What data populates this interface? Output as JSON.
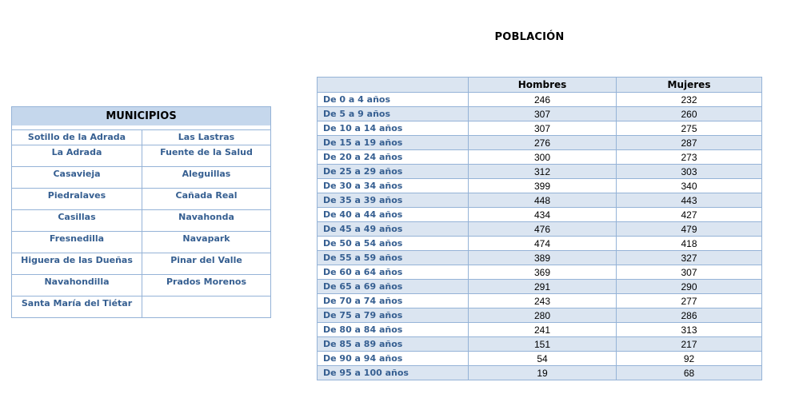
{
  "colors": {
    "table_border": "#95b3d7",
    "band_fill": "#dbe5f1",
    "municipios_header_fill": "#c5d7ec",
    "blue_text": "#365f91",
    "black_text": "#000000"
  },
  "municipios": {
    "title": "MUNICIPIOS",
    "rows": [
      [
        "Sotillo de la Adrada",
        "Las Lastras"
      ],
      [
        "La Adrada",
        "Fuente de la Salud"
      ],
      [
        "Casavieja",
        "Aleguillas"
      ],
      [
        "Piedralaves",
        "Cañada Real"
      ],
      [
        "Casillas",
        "Navahonda"
      ],
      [
        "Fresnedilla",
        "Navapark"
      ],
      [
        "Higuera de las Dueñas",
        "Pinar del Valle"
      ],
      [
        "Navahondilla",
        "Prados Morenos"
      ],
      [
        "Santa María del Tiétar",
        ""
      ]
    ]
  },
  "poblacion": {
    "title": "POBLACIÓN",
    "columns": [
      "",
      "Hombres",
      "Mujeres"
    ],
    "rows": [
      {
        "label": "De 0 a 4 años",
        "hombres": "246",
        "mujeres": "232"
      },
      {
        "label": "De 5 a 9 años",
        "hombres": "307",
        "mujeres": "260"
      },
      {
        "label": "De 10 a 14 años",
        "hombres": "307",
        "mujeres": "275"
      },
      {
        "label": "De 15 a 19 años",
        "hombres": "276",
        "mujeres": "287"
      },
      {
        "label": "De 20 a 24 años",
        "hombres": "300",
        "mujeres": "273"
      },
      {
        "label": "De 25 a 29 años",
        "hombres": "312",
        "mujeres": "303"
      },
      {
        "label": "De 30 a 34 años",
        "hombres": "399",
        "mujeres": "340"
      },
      {
        "label": "De 35 a 39 años",
        "hombres": "448",
        "mujeres": "443"
      },
      {
        "label": "De 40 a 44 años",
        "hombres": "434",
        "mujeres": "427"
      },
      {
        "label": "De 45 a 49 años",
        "hombres": "476",
        "mujeres": "479"
      },
      {
        "label": "De 50 a 54 años",
        "hombres": "474",
        "mujeres": "418"
      },
      {
        "label": "De 55 a 59 años",
        "hombres": "389",
        "mujeres": "327"
      },
      {
        "label": "De 60 a 64 años",
        "hombres": "369",
        "mujeres": "307"
      },
      {
        "label": "De 65 a 69 años",
        "hombres": "291",
        "mujeres": "290"
      },
      {
        "label": "De 70 a 74 años",
        "hombres": "243",
        "mujeres": "277"
      },
      {
        "label": "De 75 a 79 años",
        "hombres": "280",
        "mujeres": "286"
      },
      {
        "label": "De 80 a 84 años",
        "hombres": "241",
        "mujeres": "313"
      },
      {
        "label": "De 85 a 89 años",
        "hombres": "151",
        "mujeres": "217"
      },
      {
        "label": "De 90 a 94 años",
        "hombres": "54",
        "mujeres": "92"
      },
      {
        "label": "De 95 a 100 años",
        "hombres": "19",
        "mujeres": "68"
      }
    ]
  }
}
